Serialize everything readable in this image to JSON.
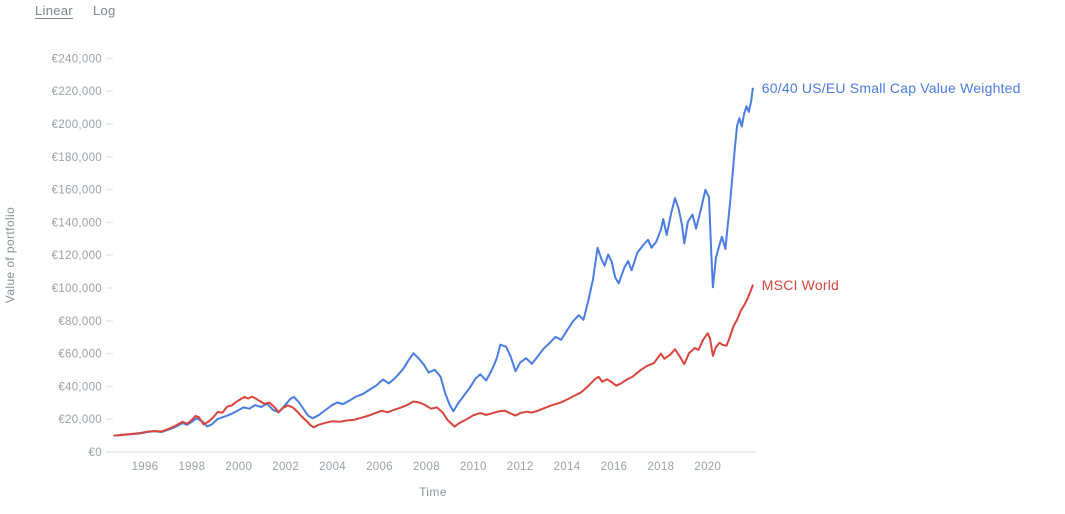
{
  "controls": {
    "linear_label": "Linear",
    "log_label": "Log",
    "active": "Linear"
  },
  "chart_data": {
    "type": "line",
    "title": "",
    "xlabel": "Time",
    "ylabel": "Value of portfolio",
    "grid": false,
    "legend_position": "line-end-labels",
    "xlim": [
      1994.7,
      2022.3
    ],
    "ylim": [
      0,
      240000
    ],
    "x_ticks": [
      1996,
      1998,
      2000,
      2002,
      2004,
      2006,
      2008,
      2010,
      2012,
      2014,
      2016,
      2018,
      2020
    ],
    "y_ticks": [
      {
        "value": 0,
        "label": "€0"
      },
      {
        "value": 20000,
        "label": "€20,000"
      },
      {
        "value": 40000,
        "label": "€40,000"
      },
      {
        "value": 60000,
        "label": "€60,000"
      },
      {
        "value": 80000,
        "label": "€80,000"
      },
      {
        "value": 100000,
        "label": "€100,000"
      },
      {
        "value": 120000,
        "label": "€120,000"
      },
      {
        "value": 140000,
        "label": "€140,000"
      },
      {
        "value": 160000,
        "label": "€160,000"
      },
      {
        "value": 180000,
        "label": "€180,000"
      },
      {
        "value": 200000,
        "label": "€200,000"
      },
      {
        "value": 220000,
        "label": "€220,000"
      },
      {
        "value": 240000,
        "label": "€240,000"
      }
    ],
    "colors": {
      "axis_line": "#e7e9ea",
      "tick_mark": "#e7e9ea",
      "tick_text": "#9aa1a8"
    },
    "series": [
      {
        "name": "60/40 US/EU Small Cap Value Weighted",
        "color": "#4a7de4",
        "points": [
          [
            1994.7,
            10000
          ],
          [
            1995.0,
            10300
          ],
          [
            1995.4,
            10800
          ],
          [
            1995.8,
            11300
          ],
          [
            1996.1,
            12200
          ],
          [
            1996.4,
            12600
          ],
          [
            1996.7,
            12200
          ],
          [
            1997.0,
            13600
          ],
          [
            1997.3,
            15300
          ],
          [
            1997.6,
            17600
          ],
          [
            1997.8,
            16600
          ],
          [
            1998.0,
            18400
          ],
          [
            1998.2,
            20600
          ],
          [
            1998.45,
            18600
          ],
          [
            1998.65,
            15600
          ],
          [
            1998.85,
            16800
          ],
          [
            1999.1,
            20200
          ],
          [
            1999.4,
            21600
          ],
          [
            1999.7,
            23300
          ],
          [
            2000.0,
            25600
          ],
          [
            2000.2,
            27200
          ],
          [
            2000.45,
            26400
          ],
          [
            2000.7,
            28600
          ],
          [
            2000.95,
            27400
          ],
          [
            2001.2,
            29600
          ],
          [
            2001.45,
            25800
          ],
          [
            2001.7,
            24200
          ],
          [
            2001.95,
            28200
          ],
          [
            2002.2,
            32400
          ],
          [
            2002.35,
            33600
          ],
          [
            2002.55,
            30600
          ],
          [
            2002.75,
            26400
          ],
          [
            2002.95,
            22200
          ],
          [
            2003.15,
            20600
          ],
          [
            2003.4,
            22400
          ],
          [
            2003.7,
            25600
          ],
          [
            2004.0,
            28800
          ],
          [
            2004.2,
            30200
          ],
          [
            2004.45,
            29200
          ],
          [
            2004.7,
            31200
          ],
          [
            2005.0,
            33800
          ],
          [
            2005.3,
            35400
          ],
          [
            2005.6,
            38200
          ],
          [
            2005.9,
            41000
          ],
          [
            2006.15,
            44200
          ],
          [
            2006.4,
            41800
          ],
          [
            2006.7,
            45600
          ],
          [
            2007.0,
            50400
          ],
          [
            2007.25,
            56200
          ],
          [
            2007.45,
            60200
          ],
          [
            2007.65,
            57400
          ],
          [
            2007.9,
            53200
          ],
          [
            2008.1,
            48400
          ],
          [
            2008.35,
            50200
          ],
          [
            2008.6,
            46000
          ],
          [
            2008.8,
            36000
          ],
          [
            2009.0,
            28600
          ],
          [
            2009.15,
            24800
          ],
          [
            2009.35,
            29600
          ],
          [
            2009.6,
            34400
          ],
          [
            2009.85,
            39200
          ],
          [
            2010.1,
            44800
          ],
          [
            2010.3,
            47400
          ],
          [
            2010.55,
            43600
          ],
          [
            2010.8,
            50200
          ],
          [
            2011.0,
            57000
          ],
          [
            2011.15,
            65400
          ],
          [
            2011.4,
            64200
          ],
          [
            2011.6,
            58000
          ],
          [
            2011.8,
            49200
          ],
          [
            2012.0,
            54600
          ],
          [
            2012.25,
            57200
          ],
          [
            2012.5,
            53800
          ],
          [
            2012.75,
            58400
          ],
          [
            2013.0,
            63000
          ],
          [
            2013.25,
            66400
          ],
          [
            2013.5,
            70200
          ],
          [
            2013.75,
            68400
          ],
          [
            2014.0,
            74200
          ],
          [
            2014.25,
            79600
          ],
          [
            2014.5,
            83400
          ],
          [
            2014.7,
            80600
          ],
          [
            2014.9,
            92000
          ],
          [
            2015.1,
            105000
          ],
          [
            2015.3,
            124600
          ],
          [
            2015.45,
            118200
          ],
          [
            2015.6,
            113600
          ],
          [
            2015.75,
            120400
          ],
          [
            2015.9,
            116200
          ],
          [
            2016.05,
            106400
          ],
          [
            2016.2,
            102800
          ],
          [
            2016.45,
            112600
          ],
          [
            2016.6,
            116400
          ],
          [
            2016.75,
            110800
          ],
          [
            2017.0,
            121600
          ],
          [
            2017.25,
            126200
          ],
          [
            2017.45,
            129400
          ],
          [
            2017.6,
            124600
          ],
          [
            2017.8,
            128200
          ],
          [
            2018.0,
            135600
          ],
          [
            2018.1,
            142000
          ],
          [
            2018.25,
            132400
          ],
          [
            2018.45,
            146200
          ],
          [
            2018.6,
            154800
          ],
          [
            2018.75,
            148600
          ],
          [
            2018.9,
            138400
          ],
          [
            2019.0,
            127200
          ],
          [
            2019.15,
            140400
          ],
          [
            2019.35,
            144800
          ],
          [
            2019.5,
            136200
          ],
          [
            2019.7,
            147600
          ],
          [
            2019.9,
            159800
          ],
          [
            2020.05,
            155400
          ],
          [
            2020.15,
            121000
          ],
          [
            2020.22,
            100400
          ],
          [
            2020.35,
            118600
          ],
          [
            2020.5,
            126400
          ],
          [
            2020.6,
            131200
          ],
          [
            2020.75,
            123800
          ],
          [
            2020.85,
            138000
          ],
          [
            2020.95,
            152000
          ],
          [
            2021.05,
            168000
          ],
          [
            2021.15,
            185000
          ],
          [
            2021.25,
            199000
          ],
          [
            2021.35,
            203600
          ],
          [
            2021.45,
            198400
          ],
          [
            2021.55,
            206200
          ],
          [
            2021.65,
            210800
          ],
          [
            2021.75,
            207400
          ],
          [
            2021.85,
            214000
          ],
          [
            2021.92,
            221600
          ]
        ]
      },
      {
        "name": "MSCI World",
        "color": "#d9453c",
        "points": [
          [
            1994.7,
            10000
          ],
          [
            1995.0,
            10400
          ],
          [
            1995.4,
            11000
          ],
          [
            1995.8,
            11600
          ],
          [
            1996.1,
            12400
          ],
          [
            1996.4,
            12800
          ],
          [
            1996.7,
            12500
          ],
          [
            1997.0,
            14000
          ],
          [
            1997.3,
            16000
          ],
          [
            1997.6,
            18400
          ],
          [
            1997.8,
            17200
          ],
          [
            1998.0,
            19600
          ],
          [
            1998.15,
            22000
          ],
          [
            1998.3,
            21200
          ],
          [
            1998.5,
            16800
          ],
          [
            1998.7,
            18400
          ],
          [
            1998.9,
            21000
          ],
          [
            1999.1,
            24400
          ],
          [
            1999.3,
            24000
          ],
          [
            1999.5,
            27600
          ],
          [
            1999.7,
            28400
          ],
          [
            1999.9,
            30600
          ],
          [
            2000.1,
            32400
          ],
          [
            2000.25,
            33600
          ],
          [
            2000.4,
            32600
          ],
          [
            2000.55,
            33800
          ],
          [
            2000.7,
            32800
          ],
          [
            2000.9,
            31000
          ],
          [
            2001.1,
            29400
          ],
          [
            2001.3,
            30200
          ],
          [
            2001.5,
            27600
          ],
          [
            2001.7,
            24400
          ],
          [
            2001.9,
            27000
          ],
          [
            2002.1,
            28400
          ],
          [
            2002.3,
            27200
          ],
          [
            2002.5,
            24600
          ],
          [
            2002.7,
            21400
          ],
          [
            2002.9,
            18800
          ],
          [
            2003.05,
            16400
          ],
          [
            2003.2,
            15000
          ],
          [
            2003.4,
            16600
          ],
          [
            2003.7,
            17800
          ],
          [
            2004.0,
            18800
          ],
          [
            2004.3,
            18400
          ],
          [
            2004.6,
            19200
          ],
          [
            2004.9,
            19600
          ],
          [
            2005.2,
            20800
          ],
          [
            2005.5,
            22000
          ],
          [
            2005.8,
            23600
          ],
          [
            2006.1,
            25200
          ],
          [
            2006.35,
            24200
          ],
          [
            2006.6,
            25600
          ],
          [
            2006.9,
            27000
          ],
          [
            2007.2,
            28800
          ],
          [
            2007.45,
            30800
          ],
          [
            2007.7,
            30200
          ],
          [
            2007.95,
            28600
          ],
          [
            2008.2,
            26400
          ],
          [
            2008.45,
            27200
          ],
          [
            2008.7,
            24000
          ],
          [
            2008.9,
            19600
          ],
          [
            2009.1,
            16800
          ],
          [
            2009.2,
            15400
          ],
          [
            2009.4,
            17600
          ],
          [
            2009.7,
            19800
          ],
          [
            2010.0,
            22400
          ],
          [
            2010.3,
            23800
          ],
          [
            2010.55,
            22600
          ],
          [
            2010.8,
            23600
          ],
          [
            2011.1,
            24800
          ],
          [
            2011.35,
            25200
          ],
          [
            2011.6,
            23400
          ],
          [
            2011.8,
            22200
          ],
          [
            2012.0,
            23800
          ],
          [
            2012.3,
            24600
          ],
          [
            2012.5,
            24000
          ],
          [
            2012.8,
            25400
          ],
          [
            2013.1,
            27200
          ],
          [
            2013.4,
            28800
          ],
          [
            2013.7,
            30000
          ],
          [
            2014.0,
            32000
          ],
          [
            2014.3,
            34200
          ],
          [
            2014.6,
            36400
          ],
          [
            2014.9,
            40200
          ],
          [
            2015.2,
            44600
          ],
          [
            2015.35,
            45800
          ],
          [
            2015.5,
            42800
          ],
          [
            2015.7,
            44400
          ],
          [
            2015.9,
            42600
          ],
          [
            2016.1,
            40400
          ],
          [
            2016.3,
            41800
          ],
          [
            2016.55,
            44200
          ],
          [
            2016.8,
            46000
          ],
          [
            2017.1,
            49600
          ],
          [
            2017.4,
            52400
          ],
          [
            2017.7,
            54200
          ],
          [
            2018.0,
            60000
          ],
          [
            2018.15,
            56800
          ],
          [
            2018.4,
            59400
          ],
          [
            2018.6,
            62600
          ],
          [
            2018.8,
            58400
          ],
          [
            2019.0,
            53600
          ],
          [
            2019.2,
            60200
          ],
          [
            2019.45,
            63400
          ],
          [
            2019.6,
            62200
          ],
          [
            2019.8,
            68400
          ],
          [
            2020.0,
            72400
          ],
          [
            2020.1,
            69000
          ],
          [
            2020.22,
            58600
          ],
          [
            2020.35,
            64000
          ],
          [
            2020.5,
            66600
          ],
          [
            2020.65,
            65200
          ],
          [
            2020.8,
            64800
          ],
          [
            2020.95,
            70400
          ],
          [
            2021.1,
            76800
          ],
          [
            2021.25,
            80600
          ],
          [
            2021.4,
            86000
          ],
          [
            2021.55,
            89400
          ],
          [
            2021.7,
            93600
          ],
          [
            2021.8,
            97200
          ],
          [
            2021.92,
            101600
          ]
        ]
      }
    ]
  }
}
